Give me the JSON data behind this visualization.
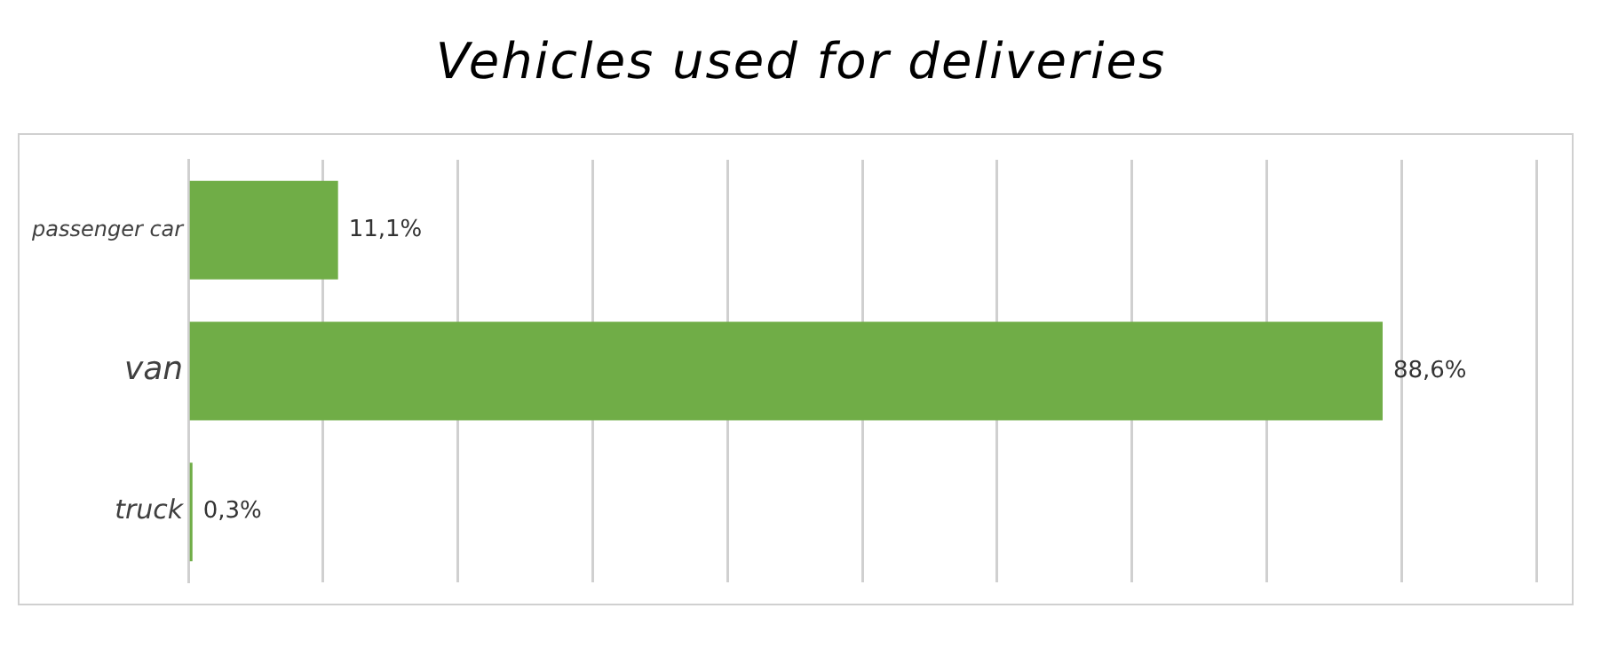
{
  "chart_data": {
    "type": "bar",
    "orientation": "horizontal",
    "title": "Vehicles used for deliveries",
    "categories": [
      "passenger car",
      "van",
      "truck"
    ],
    "values": [
      11.1,
      88.6,
      0.3
    ],
    "value_labels": [
      "11,1%",
      "88,6%",
      "0,3%"
    ],
    "color": "#70ad47",
    "xlim": [
      0,
      100
    ],
    "xticks": [
      {
        "value": 0,
        "label": null
      },
      {
        "value": 10,
        "label": null
      },
      {
        "value": 20,
        "label": null
      },
      {
        "value": 30,
        "label": null
      },
      {
        "value": 40,
        "label": null
      },
      {
        "value": 50,
        "label": null
      },
      {
        "value": 60,
        "label": null
      },
      {
        "value": 70,
        "label": null
      },
      {
        "value": 80,
        "label": null
      },
      {
        "value": 90,
        "label": null
      },
      {
        "value": 100,
        "label": null
      }
    ],
    "grid": "x",
    "tick_labels": "y",
    "legend": false
  }
}
